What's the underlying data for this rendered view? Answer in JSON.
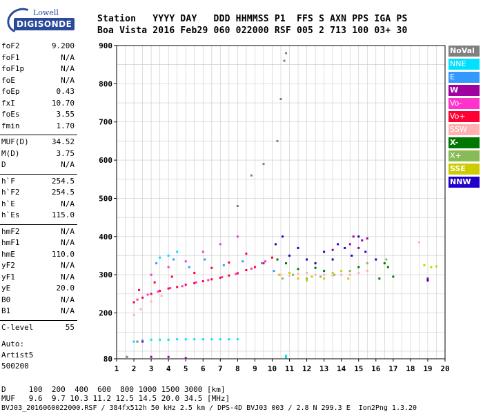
{
  "header": {
    "line1": "Station   YYYY DAY   DDD HHMMSS P1  FFS S AXN PPS IGA PS",
    "line2": "Boa Vista 2016 Feb29 060 022000 RSF 005 2 713 100 03+ 30"
  },
  "logo": {
    "top": "Lowell",
    "main": "DIGISONDE"
  },
  "params_a": [
    {
      "k": "foF2",
      "v": "9.200"
    },
    {
      "k": "foF1",
      "v": "N/A"
    },
    {
      "k": "foF1p",
      "v": "N/A"
    },
    {
      "k": "foE",
      "v": "N/A"
    },
    {
      "k": "foEp",
      "v": "0.43"
    },
    {
      "k": "fxI",
      "v": "10.70"
    },
    {
      "k": "foEs",
      "v": "3.55"
    },
    {
      "k": "fmin",
      "v": "1.70"
    }
  ],
  "params_b": [
    {
      "k": "MUF(D)",
      "v": "34.52"
    },
    {
      "k": "M(D)",
      "v": "3.75"
    },
    {
      "k": "D",
      "v": "N/A"
    }
  ],
  "params_c": [
    {
      "k": "h`F",
      "v": "254.5"
    },
    {
      "k": "h`F2",
      "v": "254.5"
    },
    {
      "k": "h`E",
      "v": "N/A"
    },
    {
      "k": "h`Es",
      "v": "115.0"
    }
  ],
  "params_d": [
    {
      "k": "hmF2",
      "v": "N/A"
    },
    {
      "k": "hmF1",
      "v": "N/A"
    },
    {
      "k": "hmE",
      "v": "110.0"
    },
    {
      "k": "yF2",
      "v": "N/A"
    },
    {
      "k": "yF1",
      "v": "N/A"
    },
    {
      "k": "yE",
      "v": "20.0"
    },
    {
      "k": "B0",
      "v": "N/A"
    },
    {
      "k": "B1",
      "v": "N/A"
    }
  ],
  "clevel": {
    "k": "C-level",
    "v": "55"
  },
  "auto": [
    "Auto:",
    "Artist5",
    "500200"
  ],
  "legend": [
    {
      "label": "NoVal",
      "bg": "#808080",
      "fg": "#ffffff",
      "bold": true
    },
    {
      "label": "NNE",
      "bg": "#00e0ff",
      "fg": "#ffffff"
    },
    {
      "label": "E",
      "bg": "#3399ff",
      "fg": "#ffffff"
    },
    {
      "label": "W",
      "bg": "#a000a0",
      "fg": "#ffffff",
      "bold": true
    },
    {
      "label": "Vo-",
      "bg": "#ff33cc",
      "fg": "#ffffff"
    },
    {
      "label": "Vo+",
      "bg": "#ff0033",
      "fg": "#ffffff"
    },
    {
      "label": "SSW",
      "bg": "#ffb0b0",
      "fg": "#ffffff"
    },
    {
      "label": "X-",
      "bg": "#007700",
      "fg": "#ffffff",
      "bold": true
    },
    {
      "label": "X+",
      "bg": "#88bb55",
      "fg": "#ffffff"
    },
    {
      "label": "SSE",
      "bg": "#cccc00",
      "fg": "#ffffff",
      "bold": true
    },
    {
      "label": "NNW",
      "bg": "#2200cc",
      "fg": "#ffffff",
      "bold": true
    }
  ],
  "bottom": {
    "d_line": "D     100  200  400  600  800 1000 1500 3000 [km]",
    "muf_line": "MUF   9.6  9.7 10.3 11.2 12.5 14.5 20.0 34.5 [MHz]",
    "file_line": "BVJ03_2016060022000.RSF / 384fx512h 50 kHz 2.5 km / DPS-4D BVJ03 003 / 2.8 N 299.3 E  Ion2Png 1.3.20"
  },
  "chart_data": {
    "type": "scatter",
    "xlim": [
      1,
      20
    ],
    "ylim": [
      80,
      900
    ],
    "x_ticks": [
      1,
      2,
      3,
      4,
      5,
      6,
      7,
      8,
      9,
      10,
      11,
      12,
      13,
      14,
      15,
      16,
      17,
      18,
      19,
      20
    ],
    "y_ticks": [
      80,
      200,
      300,
      400,
      500,
      600,
      700,
      800,
      900
    ],
    "grid": true,
    "legend_position": "right",
    "series": [
      {
        "name": "Vo+",
        "color": "#ff0033",
        "points": [
          [
            2,
            228
          ],
          [
            2.5,
            240
          ],
          [
            3,
            250
          ],
          [
            3.5,
            258
          ],
          [
            4,
            264
          ],
          [
            4.5,
            268
          ],
          [
            5,
            274
          ],
          [
            5.5,
            278
          ],
          [
            6,
            283
          ],
          [
            6.5,
            288
          ],
          [
            7,
            292
          ],
          [
            7.5,
            298
          ],
          [
            8,
            304
          ],
          [
            8.5,
            312
          ],
          [
            9,
            320
          ],
          [
            9.5,
            330
          ],
          [
            10,
            345
          ],
          [
            2.3,
            260
          ],
          [
            3.2,
            280
          ],
          [
            4.2,
            295
          ],
          [
            5.5,
            305
          ],
          [
            6.5,
            318
          ],
          [
            7.5,
            332
          ],
          [
            8.5,
            355
          ]
        ]
      },
      {
        "name": "Vo-",
        "color": "#ff33cc",
        "points": [
          [
            2.2,
            235
          ],
          [
            2.8,
            248
          ],
          [
            3.4,
            256
          ],
          [
            4.1,
            265
          ],
          [
            4.8,
            270
          ],
          [
            5.6,
            280
          ],
          [
            6.3,
            286
          ],
          [
            7.1,
            294
          ],
          [
            7.9,
            302
          ],
          [
            8.8,
            316
          ],
          [
            9.6,
            335
          ],
          [
            3,
            300
          ],
          [
            4,
            320
          ],
          [
            5,
            335
          ],
          [
            6,
            360
          ],
          [
            7,
            380
          ],
          [
            8,
            400
          ]
        ]
      },
      {
        "name": "SSW",
        "color": "#ffb0b0",
        "points": [
          [
            2,
            195
          ],
          [
            2.4,
            210
          ],
          [
            3,
            230
          ],
          [
            3.6,
            245
          ],
          [
            10.5,
            300
          ],
          [
            11,
            298
          ],
          [
            11.5,
            302
          ],
          [
            12,
            305
          ],
          [
            12.5,
            300
          ],
          [
            13,
            300
          ],
          [
            13.5,
            298
          ],
          [
            14,
            300
          ],
          [
            14.5,
            300
          ],
          [
            15,
            305
          ],
          [
            15.5,
            310
          ],
          [
            18.5,
            385
          ]
        ]
      },
      {
        "name": "NNE",
        "color": "#00e0ff",
        "points": [
          [
            2,
            125
          ],
          [
            2.5,
            128
          ],
          [
            3,
            130
          ],
          [
            3.5,
            130
          ],
          [
            4,
            130
          ],
          [
            4.5,
            131
          ],
          [
            5,
            131
          ],
          [
            5.5,
            131
          ],
          [
            6,
            131
          ],
          [
            6.5,
            131
          ],
          [
            7,
            131
          ],
          [
            7.5,
            131
          ],
          [
            8,
            131
          ],
          [
            3.5,
            345
          ],
          [
            4,
            350
          ],
          [
            4.5,
            360
          ],
          [
            10.8,
            88
          ],
          [
            10.8,
            84
          ]
        ]
      },
      {
        "name": "E",
        "color": "#3399ff",
        "points": [
          [
            3.3,
            330
          ],
          [
            4.3,
            340
          ],
          [
            5.2,
            320
          ],
          [
            6.1,
            340
          ],
          [
            7.2,
            325
          ],
          [
            8.3,
            335
          ],
          [
            9.4,
            330
          ],
          [
            10.1,
            310
          ]
        ]
      },
      {
        "name": "W",
        "color": "#a000a0",
        "points": [
          [
            3,
            85
          ],
          [
            4,
            85
          ],
          [
            5,
            82
          ],
          [
            2.5,
            125
          ],
          [
            13.5,
            365
          ],
          [
            14.5,
            380
          ],
          [
            14.7,
            400
          ],
          [
            15,
            370
          ],
          [
            15.2,
            390
          ],
          [
            15.5,
            395
          ],
          [
            19,
            290
          ]
        ]
      },
      {
        "name": "X-",
        "color": "#007700",
        "points": [
          [
            10.3,
            340
          ],
          [
            10.8,
            330
          ],
          [
            11.5,
            315
          ],
          [
            12.5,
            318
          ],
          [
            13,
            310
          ],
          [
            15,
            320
          ],
          [
            16.2,
            290
          ],
          [
            16.5,
            330
          ],
          [
            16.7,
            320
          ],
          [
            17,
            295
          ]
        ]
      },
      {
        "name": "X+",
        "color": "#88bb55",
        "points": [
          [
            10.6,
            290
          ],
          [
            11.2,
            300
          ],
          [
            12,
            290
          ],
          [
            12.8,
            295
          ],
          [
            13.6,
            300
          ],
          [
            14.5,
            310
          ],
          [
            15.5,
            330
          ],
          [
            16.6,
            340
          ]
        ]
      },
      {
        "name": "SSE",
        "color": "#cccc00",
        "points": [
          [
            10.4,
            300
          ],
          [
            11,
            305
          ],
          [
            11.5,
            290
          ],
          [
            12,
            285
          ],
          [
            12.3,
            295
          ],
          [
            13,
            290
          ],
          [
            13.5,
            305
          ],
          [
            14,
            310
          ],
          [
            14.4,
            290
          ],
          [
            18.8,
            325
          ],
          [
            19.2,
            320
          ],
          [
            19.5,
            322
          ]
        ]
      },
      {
        "name": "NNW",
        "color": "#2200cc",
        "points": [
          [
            10.2,
            380
          ],
          [
            10.6,
            400
          ],
          [
            11,
            350
          ],
          [
            11.5,
            370
          ],
          [
            12,
            340
          ],
          [
            12.5,
            330
          ],
          [
            13,
            360
          ],
          [
            13.5,
            340
          ],
          [
            13.8,
            380
          ],
          [
            14.2,
            370
          ],
          [
            14.6,
            350
          ],
          [
            15,
            400
          ],
          [
            15.4,
            360
          ],
          [
            16,
            340
          ],
          [
            19,
            285
          ]
        ]
      },
      {
        "name": "NoVal",
        "color": "#808080",
        "points": [
          [
            8,
            480
          ],
          [
            8.8,
            560
          ],
          [
            9.5,
            590
          ],
          [
            10.3,
            650
          ],
          [
            10.5,
            760
          ],
          [
            10.7,
            860
          ],
          [
            10.8,
            880
          ],
          [
            2.2,
            125
          ],
          [
            1.6,
            85
          ]
        ]
      }
    ]
  }
}
